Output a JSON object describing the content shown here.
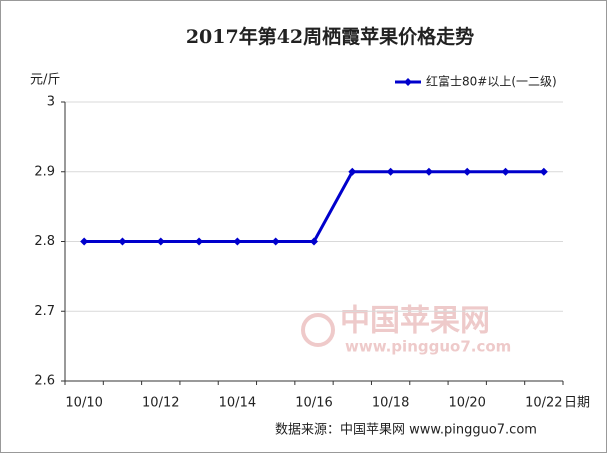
{
  "chart_data": {
    "type": "line",
    "title": "2017年第42周栖霞苹果价格走势",
    "y_label": "元/斤",
    "x_label": "日期",
    "source": "数据来源：中国苹果网 www.pingguo7.com",
    "watermark": "中国苹果网",
    "watermark_url": "www.pingguo7.com",
    "categories": [
      "10/10",
      null,
      "10/12",
      null,
      "10/14",
      null,
      "10/16",
      null,
      "10/18",
      null,
      "10/20",
      null,
      "10/22"
    ],
    "series": [
      {
        "name": "红富士80#以上(一二级)",
        "color": "#0000cc",
        "values": [
          2.8,
          2.8,
          2.8,
          2.8,
          2.8,
          2.8,
          2.8,
          2.9,
          2.9,
          2.9,
          2.9,
          2.9,
          2.9
        ]
      }
    ],
    "ylim": [
      2.6,
      3
    ],
    "yticks": [
      2.6,
      2.7,
      2.8,
      2.9,
      3
    ],
    "grid": true,
    "legend": "top-right"
  }
}
